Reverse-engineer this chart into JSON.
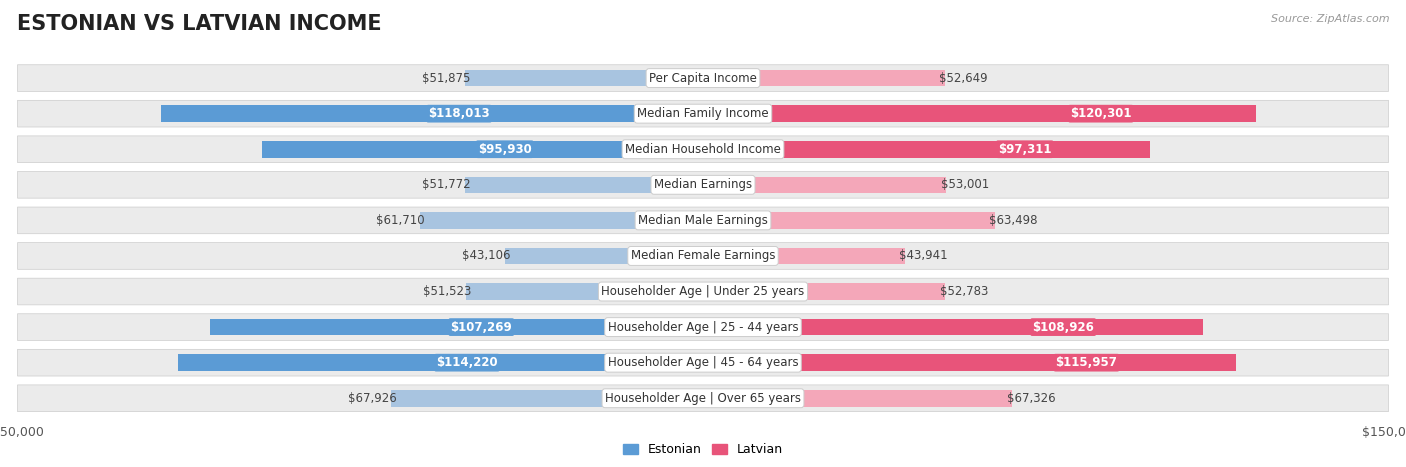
{
  "title": "ESTONIAN VS LATVIAN INCOME",
  "source": "Source: ZipAtlas.com",
  "categories": [
    "Per Capita Income",
    "Median Family Income",
    "Median Household Income",
    "Median Earnings",
    "Median Male Earnings",
    "Median Female Earnings",
    "Householder Age | Under 25 years",
    "Householder Age | 25 - 44 years",
    "Householder Age | 45 - 64 years",
    "Householder Age | Over 65 years"
  ],
  "estonian": [
    51875,
    118013,
    95930,
    51772,
    61710,
    43106,
    51523,
    107269,
    114220,
    67926
  ],
  "latvian": [
    52649,
    120301,
    97311,
    53001,
    63498,
    43941,
    52783,
    108926,
    115957,
    67326
  ],
  "estonian_labels": [
    "$51,875",
    "$118,013",
    "$95,930",
    "$51,772",
    "$61,710",
    "$43,106",
    "$51,523",
    "$107,269",
    "$114,220",
    "$67,926"
  ],
  "latvian_labels": [
    "$52,649",
    "$120,301",
    "$97,311",
    "$53,001",
    "$63,498",
    "$43,941",
    "$52,783",
    "$108,926",
    "$115,957",
    "$67,326"
  ],
  "estonian_color_light": "#a8c4e0",
  "estonian_color_dark": "#5b9bd5",
  "latvian_color_light": "#f4a7b9",
  "latvian_color_dark": "#e8547a",
  "max_value": 150000,
  "fig_bg": "#ffffff",
  "row_bg": "#ebebeb",
  "title_fontsize": 15,
  "label_fontsize": 8.5,
  "axis_fontsize": 9,
  "legend_fontsize": 9,
  "threshold_dark": 85000
}
